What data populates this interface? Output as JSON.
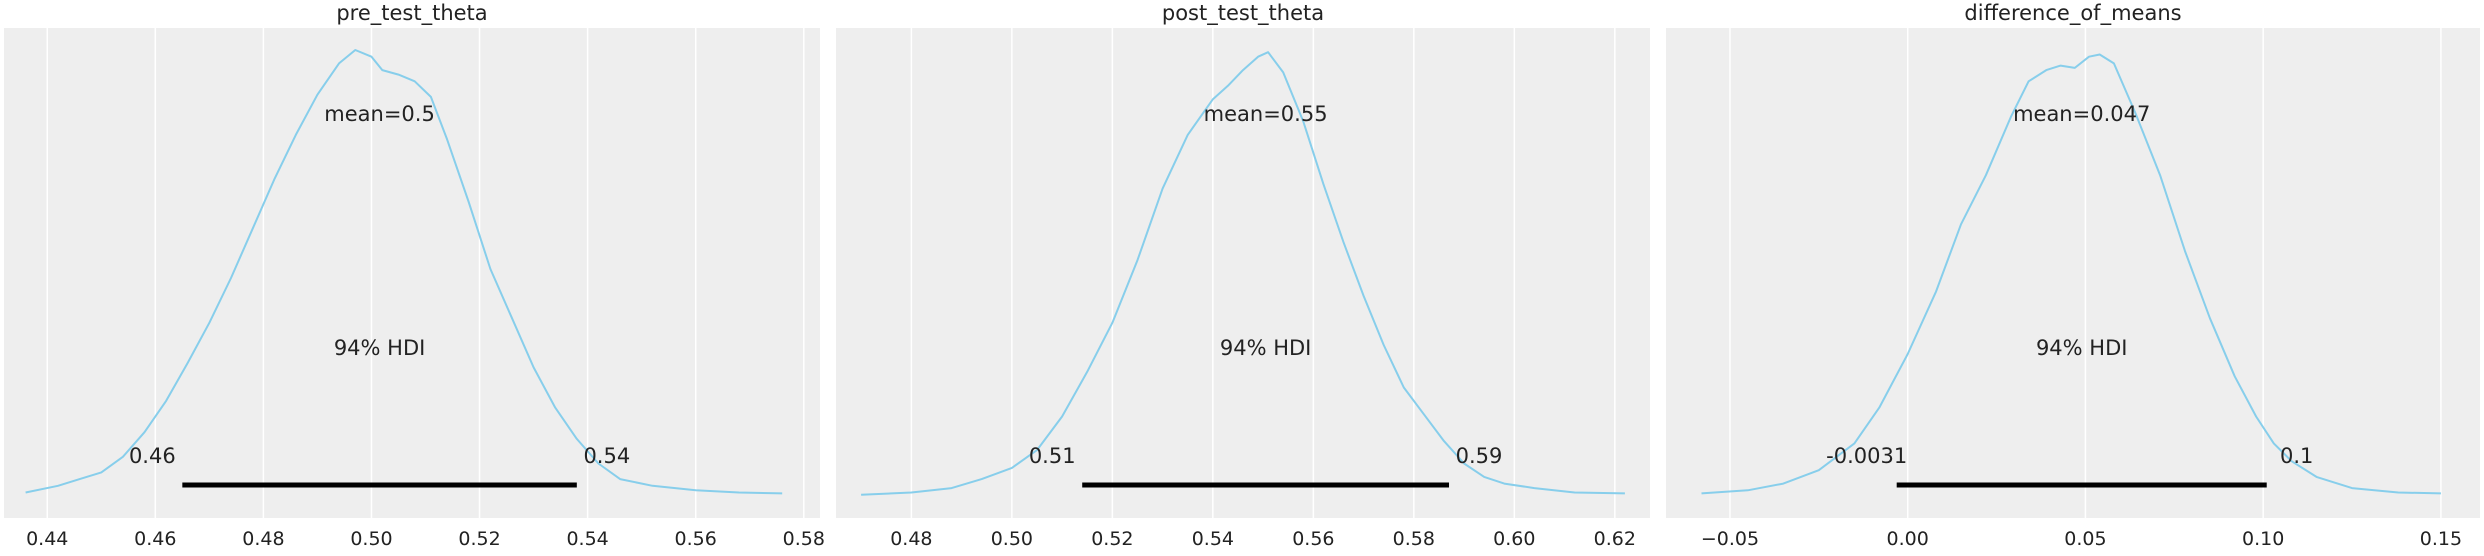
{
  "chart_data": [
    {
      "type": "line",
      "title": "pre_test_theta",
      "xlim": [
        0.432,
        0.583
      ],
      "xticks": [
        0.44,
        0.46,
        0.48,
        0.5,
        0.52,
        0.54,
        0.56,
        0.58
      ],
      "xtick_labels": [
        "0.44",
        "0.46",
        "0.48",
        "0.50",
        "0.52",
        "0.54",
        "0.56",
        "0.58"
      ],
      "series": [
        {
          "x": [
            0.436,
            0.442,
            0.446,
            0.45,
            0.454,
            0.458,
            0.462,
            0.466,
            0.47,
            0.474,
            0.478,
            0.482,
            0.486,
            0.49,
            0.494,
            0.497,
            0.5,
            0.502,
            0.505,
            0.508,
            0.511,
            0.514,
            0.518,
            0.522,
            0.526,
            0.53,
            0.534,
            0.538,
            0.542,
            0.546,
            0.552,
            0.56,
            0.568,
            0.576
          ],
          "y": [
            0.01,
            0.025,
            0.04,
            0.055,
            0.09,
            0.145,
            0.215,
            0.3,
            0.39,
            0.49,
            0.6,
            0.71,
            0.81,
            0.9,
            0.97,
            1.0,
            0.985,
            0.955,
            0.945,
            0.93,
            0.895,
            0.8,
            0.66,
            0.51,
            0.4,
            0.29,
            0.2,
            0.13,
            0.075,
            0.04,
            0.025,
            0.015,
            0.01,
            0.008
          ]
        }
      ],
      "mean_label": "mean=0.5",
      "hdi_label": "94% HDI",
      "hdi": [
        0.465,
        0.538
      ],
      "hdi_low_label": "0.46",
      "hdi_high_label": "0.54"
    },
    {
      "type": "line",
      "title": "post_test_theta",
      "xlim": [
        0.465,
        0.627
      ],
      "xticks": [
        0.48,
        0.5,
        0.52,
        0.54,
        0.56,
        0.58,
        0.6,
        0.62
      ],
      "xtick_labels": [
        "0.48",
        "0.50",
        "0.52",
        "0.54",
        "0.56",
        "0.58",
        "0.60",
        "0.62"
      ],
      "series": [
        {
          "x": [
            0.47,
            0.48,
            0.488,
            0.494,
            0.5,
            0.505,
            0.51,
            0.515,
            0.52,
            0.525,
            0.53,
            0.535,
            0.54,
            0.543,
            0.546,
            0.549,
            0.551,
            0.554,
            0.558,
            0.562,
            0.566,
            0.57,
            0.574,
            0.578,
            0.582,
            0.586,
            0.59,
            0.594,
            0.598,
            0.604,
            0.612,
            0.622
          ],
          "y": [
            0.005,
            0.01,
            0.02,
            0.04,
            0.065,
            0.105,
            0.18,
            0.28,
            0.39,
            0.53,
            0.69,
            0.81,
            0.89,
            0.92,
            0.955,
            0.985,
            0.995,
            0.95,
            0.84,
            0.7,
            0.57,
            0.45,
            0.34,
            0.245,
            0.185,
            0.125,
            0.075,
            0.045,
            0.03,
            0.02,
            0.01,
            0.008
          ]
        }
      ],
      "mean_label": "mean=0.55",
      "hdi_label": "94% HDI",
      "hdi": [
        0.514,
        0.587
      ],
      "hdi_low_label": "0.51",
      "hdi_high_label": "0.59"
    },
    {
      "type": "line",
      "title": "difference_of_means",
      "xlim": [
        -0.068,
        0.161
      ],
      "xticks": [
        -0.05,
        0.0,
        0.05,
        0.1,
        0.15
      ],
      "xtick_labels": [
        "−0.05",
        "0.00",
        "0.05",
        "0.10",
        "0.15"
      ],
      "series": [
        {
          "x": [
            -0.058,
            -0.045,
            -0.035,
            -0.025,
            -0.015,
            -0.008,
            0.0,
            0.008,
            0.015,
            0.022,
            0.029,
            0.034,
            0.039,
            0.043,
            0.047,
            0.051,
            0.054,
            0.058,
            0.064,
            0.071,
            0.078,
            0.085,
            0.092,
            0.098,
            0.103,
            0.108,
            0.115,
            0.125,
            0.138,
            0.15
          ],
          "y": [
            0.008,
            0.015,
            0.03,
            0.06,
            0.12,
            0.2,
            0.32,
            0.46,
            0.61,
            0.72,
            0.85,
            0.93,
            0.955,
            0.965,
            0.96,
            0.985,
            0.99,
            0.97,
            0.86,
            0.72,
            0.55,
            0.4,
            0.27,
            0.18,
            0.12,
            0.08,
            0.045,
            0.02,
            0.01,
            0.008
          ]
        }
      ],
      "mean_label": "mean=0.047",
      "hdi_label": "94% HDI",
      "hdi": [
        -0.0031,
        0.101
      ],
      "hdi_low_label": "-0.0031",
      "hdi_high_label": "0.1"
    }
  ],
  "style": {
    "background": "#eeeeee",
    "grid_color": "#ffffff",
    "line_color": "#87ceeb",
    "hdi_color": "#000000",
    "text_color": "#222222"
  }
}
